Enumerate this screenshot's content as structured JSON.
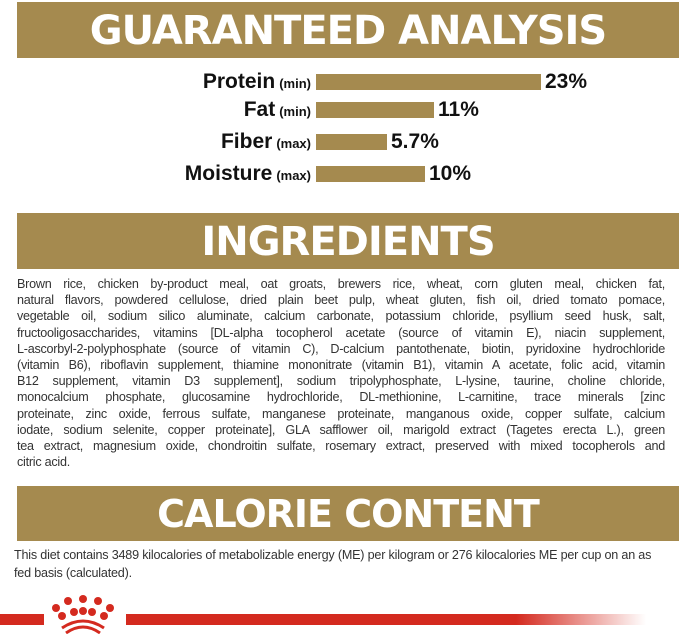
{
  "guaranteed_analysis": {
    "title": "GUARANTEED ANALYSIS",
    "rows": [
      {
        "name": "Protein",
        "qualifier": "(min)",
        "value": 23,
        "display": "23%"
      },
      {
        "name": "Fat",
        "qualifier": "(min)",
        "value": 11,
        "display": "11%"
      },
      {
        "name": "Fiber",
        "qualifier": "(max)",
        "value": 5.7,
        "display": "5.7%"
      },
      {
        "name": "Moisture",
        "qualifier": "(max)",
        "value": 10,
        "display": "10%"
      }
    ]
  },
  "ingredients": {
    "title": "INGREDIENTS",
    "lines": [
      "Brown rice, chicken by-product meal, oat groats, brewers rice, wheat, corn gluten meal, chicken fat,",
      "natural flavors, powdered cellulose, dried plain beet pulp, wheat gluten, fish oil, dried tomato pomace,",
      "vegetable oil, sodium silico aluminate, calcium carbonate, potassium chloride, psyllium seed husk, salt,",
      "fructooligosaccharides, vitamins [DL-alpha tocopherol acetate (source of vitamin E), niacin supplement,",
      "L-ascorbyl-2-polyphosphate (source of vitamin C), D-calcium pantothenate, biotin, pyridoxine hydrochloride",
      "(vitamin B6), riboflavin supplement, thiamine mononitrate (vitamin B1), vitamin A acetate, folic acid, vitamin",
      "B12 supplement, vitamin D3 supplement], sodium tripolyphosphate, L-lysine, taurine, choline chloride,",
      "monocalcium phosphate, glucosamine hydrochloride, DL-methionine, L-carnitine, trace minerals [zinc",
      "proteinate, zinc oxide, ferrous sulfate, manganese proteinate, manganous oxide, copper sulfate, calcium",
      "iodate, sodium selenite, copper proteinate], GLA safflower oil, marigold extract (Tagetes erecta L.), green",
      "tea extract, magnesium oxide, chondroitin sulfate, rosemary extract, preserved with mixed tocopherols and",
      "citric acid."
    ]
  },
  "calorie_content": {
    "title": "CALORIE CONTENT",
    "text": "This diet contains 3489 kilocalories of metabolizable energy (ME) per kilogram or 276 kilocalories ME per cup on an as fed basis (calculated)."
  },
  "colors": {
    "gold": "#a58a4f",
    "brand_red": "#d42a1f"
  },
  "logo": {
    "icon": "royal-canin-crown-icon"
  }
}
